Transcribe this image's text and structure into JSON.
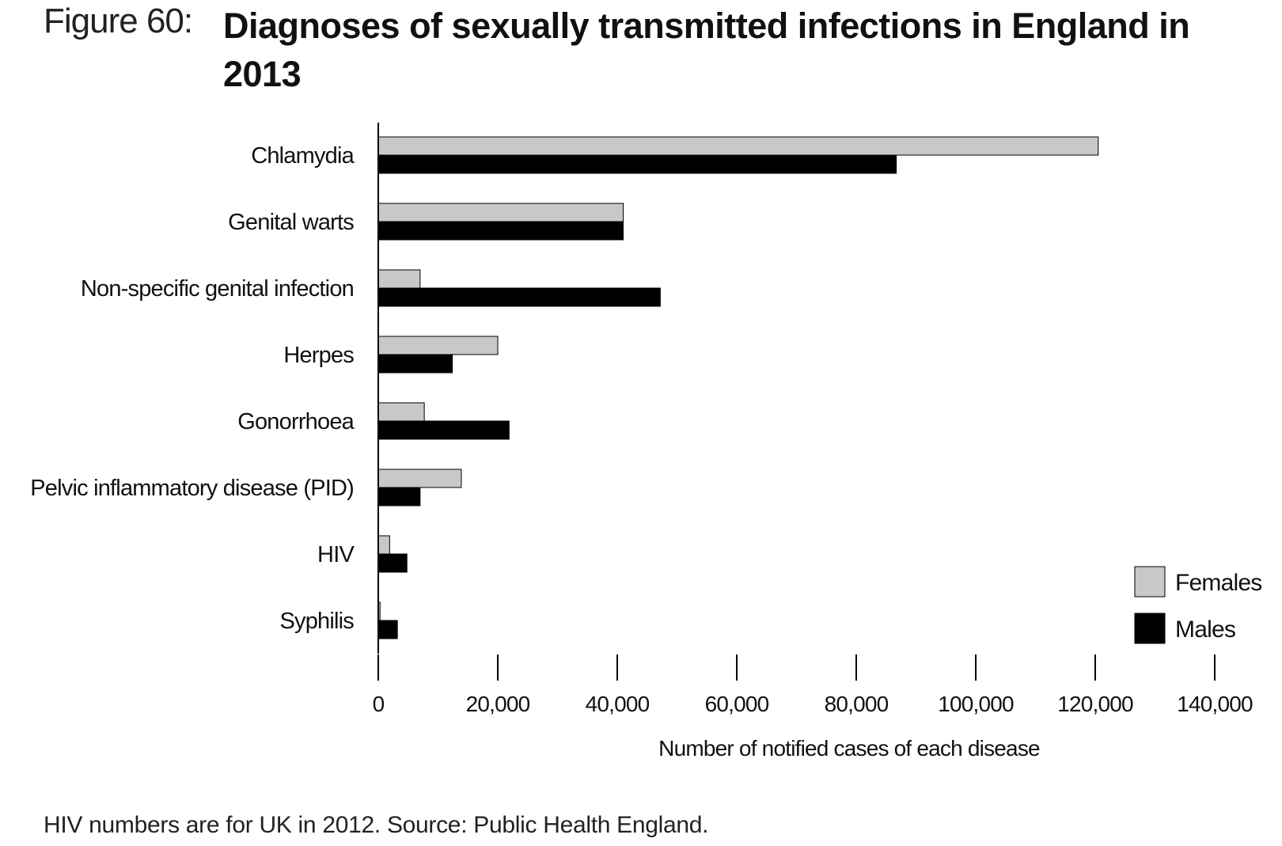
{
  "figure": {
    "label": "Figure 60:",
    "title": "Diagnoses of sexually transmitted infections in England in 2013",
    "footnote": "HIV numbers are for UK in 2012. Source: Public Health England."
  },
  "chart_data": {
    "type": "bar",
    "orientation": "horizontal",
    "categories": [
      "Chlamydia",
      "Genital warts",
      "Non-specific genital infection",
      "Herpes",
      "Gonorrhoea",
      "Pelvic inflammatory disease (PID)",
      "HIV",
      "Syphilis"
    ],
    "series": [
      {
        "name": "Females",
        "color": "#c8c8c8",
        "values": [
          120500,
          41000,
          7000,
          20000,
          7700,
          13900,
          1900,
          300
        ]
      },
      {
        "name": "Males",
        "color": "#000000",
        "values": [
          86700,
          41000,
          47200,
          12400,
          21900,
          7000,
          4800,
          3200
        ]
      }
    ],
    "xlabel": "Number of notified cases of each disease",
    "xlim": [
      0,
      140000
    ],
    "xticks": [
      0,
      20000,
      40000,
      60000,
      80000,
      100000,
      120000,
      140000
    ],
    "xtick_labels": [
      "0",
      "20,000",
      "40,000",
      "60,000",
      "80,000",
      "100,000",
      "120,000",
      "140,000"
    ],
    "grid": false,
    "legend_position": "bottom-right"
  }
}
